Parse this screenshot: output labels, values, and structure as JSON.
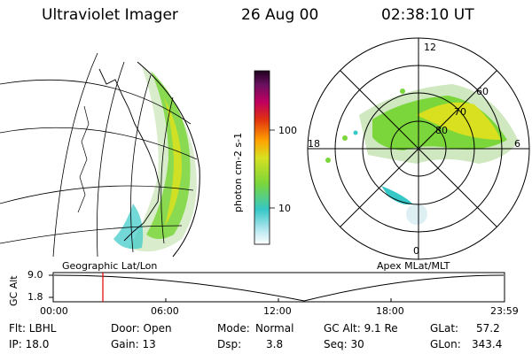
{
  "header": {
    "title": "Ultraviolet Imager",
    "date": "26 Aug 00",
    "time": "02:38:10 UT"
  },
  "colorbar": {
    "label": "photon cm-2 s-1",
    "ticks": [
      "100",
      "10"
    ]
  },
  "left_panel": {
    "caption": "Geographic Lat/Lon"
  },
  "right_panel": {
    "caption": "Apex MLat/MLT",
    "mlt_labels": [
      "12",
      "18",
      "6",
      "0"
    ],
    "lat_labels": [
      "60",
      "70",
      "80"
    ]
  },
  "altitude_plot": {
    "ylabel": "GC Alt",
    "yticks": [
      "9.0",
      "1.8"
    ],
    "xticks": [
      "00:00",
      "06:00",
      "12:00",
      "18:00",
      "23:59"
    ],
    "marker_time": "02:38"
  },
  "info": {
    "flt": "Flt: LBHL",
    "door": "Door: Open",
    "mode_label": "Mode:",
    "mode_value": "Normal",
    "gc_alt": "GC Alt: 9.1 Re",
    "glat_label": "GLat:",
    "glat_value": "57.2",
    "ip": "IP: 18.0",
    "gain": "Gain: 13",
    "dsp_label": "Dsp:",
    "dsp_value": "3.8",
    "seq": "Seq: 30",
    "glon_label": "GLon:",
    "glon_value": "343.4"
  },
  "colors": {
    "marker": "#e00000",
    "high": "#f7e400",
    "mid": "#7ad63a",
    "low": "#36c7c7"
  }
}
